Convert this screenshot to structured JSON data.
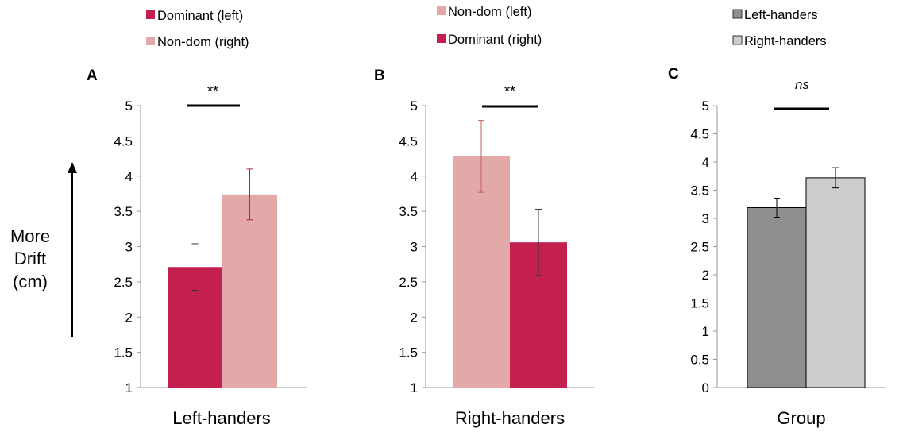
{
  "figure_ylabel": [
    "More",
    "Drift",
    "(cm)"
  ],
  "colors": {
    "dominant": "#c4204f",
    "nondominant": "#e3a8a8",
    "left_handers": "#8f8f8f",
    "right_handers": "#cdcdcd",
    "axis": "#999999",
    "error_dark": "#333333",
    "error_red": "#c06060"
  },
  "chart_data": [
    {
      "panel": "A",
      "type": "bar",
      "title": "",
      "xlabel": "Left-handers",
      "ylabel": "",
      "ylim": [
        1,
        5
      ],
      "yticks": [
        "1",
        "1.5",
        "2",
        "2.5",
        "3",
        "3.5",
        "4",
        "4.5",
        "5"
      ],
      "legend_position": "top",
      "series": [
        {
          "name": "Dominant (left)",
          "value": 2.71,
          "error": 0.33,
          "color": "#c4204f"
        },
        {
          "name": "Non-dom (right)",
          "value": 3.74,
          "error": 0.36,
          "color": "#e3a8a8"
        }
      ],
      "significance": "**"
    },
    {
      "panel": "B",
      "type": "bar",
      "title": "",
      "xlabel": "Right-handers",
      "ylabel": "",
      "ylim": [
        1,
        5
      ],
      "yticks": [
        "1",
        "1.5",
        "2",
        "2.5",
        "3",
        "3.5",
        "4",
        "4.5",
        "5"
      ],
      "legend_position": "top",
      "series": [
        {
          "name": "Non-dom (left)",
          "value": 4.28,
          "error": 0.51,
          "color": "#e3a8a8"
        },
        {
          "name": "Dominant (right)",
          "value": 3.06,
          "error": 0.47,
          "color": "#c4204f"
        }
      ],
      "significance": "**"
    },
    {
      "panel": "C",
      "type": "bar",
      "title": "",
      "xlabel": "Group",
      "ylabel": "",
      "ylim": [
        0,
        5
      ],
      "yticks": [
        "0",
        "0.5",
        "1",
        "1.5",
        "2",
        "2.5",
        "3",
        "3.5",
        "4",
        "4.5",
        "5"
      ],
      "legend_position": "top",
      "series": [
        {
          "name": "Left-handers",
          "value": 3.19,
          "error": 0.17,
          "color": "#8f8f8f"
        },
        {
          "name": "Right-handers",
          "value": 3.72,
          "error": 0.18,
          "color": "#cdcdcd"
        }
      ],
      "significance": "ns"
    }
  ]
}
